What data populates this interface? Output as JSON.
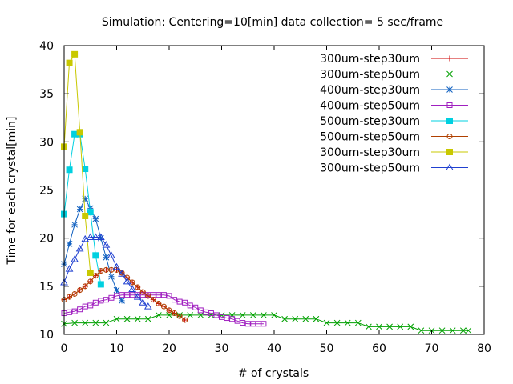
{
  "chart_data": {
    "type": "line",
    "title": "Simulation: Centering=10[min] data collection= 5 sec/frame",
    "xlabel": "# of crystals",
    "ylabel": "Time for each crystal[min]",
    "xlim": [
      0,
      80
    ],
    "ylim": [
      10,
      40
    ],
    "xticks": [
      0,
      10,
      20,
      30,
      40,
      50,
      60,
      70,
      80
    ],
    "yticks": [
      10,
      15,
      20,
      25,
      30,
      35,
      40
    ],
    "grid": false,
    "legend_position": "top-right",
    "series": [
      {
        "name": "300um-step30um",
        "color": "#cc0000",
        "marker": "plus",
        "x": [
          0,
          1,
          2,
          3,
          4,
          5,
          6,
          7,
          8,
          9,
          10,
          11,
          12,
          13,
          14,
          15,
          16,
          17,
          18,
          19,
          20,
          21,
          22,
          23
        ],
        "y": [
          13.6,
          13.9,
          14.2,
          14.6,
          15.0,
          15.5,
          16.1,
          16.6,
          16.7,
          16.7,
          16.7,
          16.4,
          15.9,
          15.4,
          14.9,
          14.4,
          14.0,
          13.6,
          13.2,
          12.9,
          12.5,
          12.2,
          11.9,
          11.5
        ]
      },
      {
        "name": "300um-step50um",
        "color": "#00a000",
        "marker": "cross",
        "x": [
          0,
          2,
          4,
          6,
          8,
          10,
          12,
          14,
          16,
          18,
          20,
          22,
          24,
          26,
          28,
          30,
          32,
          34,
          36,
          38,
          40,
          42,
          44,
          46,
          48,
          50,
          52,
          54,
          56,
          58,
          60,
          62,
          64,
          66,
          68,
          70,
          72,
          74,
          76,
          77
        ],
        "y": [
          11.1,
          11.2,
          11.2,
          11.2,
          11.2,
          11.6,
          11.6,
          11.6,
          11.6,
          12.0,
          12.0,
          12.0,
          12.0,
          12.0,
          12.0,
          12.0,
          12.0,
          12.0,
          12.0,
          12.0,
          12.0,
          11.6,
          11.6,
          11.6,
          11.6,
          11.2,
          11.2,
          11.2,
          11.2,
          10.8,
          10.8,
          10.8,
          10.8,
          10.8,
          10.4,
          10.4,
          10.4,
          10.4,
          10.4,
          10.4
        ]
      },
      {
        "name": "400um-step30um",
        "color": "#1060c0",
        "marker": "star",
        "x": [
          0,
          1,
          2,
          3,
          4,
          5,
          6,
          7,
          8,
          9,
          10,
          11
        ],
        "y": [
          17.3,
          19.4,
          21.4,
          23.0,
          24.1,
          23.1,
          22.0,
          20.0,
          18.0,
          16.0,
          14.6,
          13.5
        ]
      },
      {
        "name": "400um-step50um",
        "color": "#a020c0",
        "marker": "square",
        "x": [
          0,
          1,
          2,
          3,
          4,
          5,
          6,
          7,
          8,
          9,
          10,
          11,
          12,
          13,
          14,
          15,
          16,
          17,
          18,
          19,
          20,
          21,
          22,
          23,
          24,
          25,
          26,
          27,
          28,
          29,
          30,
          31,
          32,
          33,
          34,
          35,
          36,
          37,
          38
        ],
        "y": [
          12.2,
          12.3,
          12.4,
          12.6,
          12.9,
          13.0,
          13.3,
          13.5,
          13.6,
          13.8,
          14.0,
          14.1,
          14.1,
          14.1,
          14.1,
          14.1,
          14.1,
          14.1,
          14.1,
          14.1,
          14.0,
          13.6,
          13.4,
          13.3,
          13.0,
          12.8,
          12.5,
          12.3,
          12.2,
          12.0,
          11.8,
          11.7,
          11.6,
          11.4,
          11.2,
          11.1,
          11.1,
          11.1,
          11.1
        ]
      },
      {
        "name": "500um-step30um",
        "color": "#00d0e0",
        "marker": "filled-square",
        "x": [
          0,
          1,
          2,
          3,
          4,
          5,
          6,
          7
        ],
        "y": [
          22.5,
          27.1,
          30.8,
          30.8,
          27.2,
          22.7,
          18.2,
          15.2
        ]
      },
      {
        "name": "500um-step50um",
        "color": "#b04000",
        "marker": "circle",
        "x": [
          0,
          1,
          2,
          3,
          4,
          5,
          6,
          7,
          8,
          9,
          10,
          11,
          12,
          13,
          14,
          15,
          16,
          17,
          18,
          19,
          20,
          21,
          22,
          23
        ],
        "y": [
          13.6,
          13.9,
          14.2,
          14.6,
          15.0,
          15.5,
          16.1,
          16.6,
          16.7,
          16.7,
          16.7,
          16.4,
          15.9,
          15.4,
          14.9,
          14.4,
          14.0,
          13.6,
          13.2,
          12.9,
          12.5,
          12.2,
          11.9,
          11.5
        ]
      },
      {
        "name": "300um-step30um",
        "color": "#c8c800",
        "marker": "filled-square",
        "x": [
          0,
          1,
          2,
          3,
          4,
          5
        ],
        "y": [
          29.5,
          38.2,
          39.1,
          31.0,
          22.3,
          16.4
        ]
      },
      {
        "name": "300um-step50um",
        "color": "#2040d0",
        "marker": "triangle",
        "x": [
          0,
          1,
          2,
          3,
          4,
          5,
          6,
          7,
          8,
          9,
          10,
          11,
          12,
          13,
          14,
          15,
          16
        ],
        "y": [
          15.4,
          16.8,
          17.8,
          18.9,
          19.9,
          20.1,
          20.1,
          20.1,
          19.3,
          18.2,
          17.0,
          16.3,
          15.5,
          14.7,
          13.9,
          13.3,
          12.9
        ]
      }
    ]
  }
}
